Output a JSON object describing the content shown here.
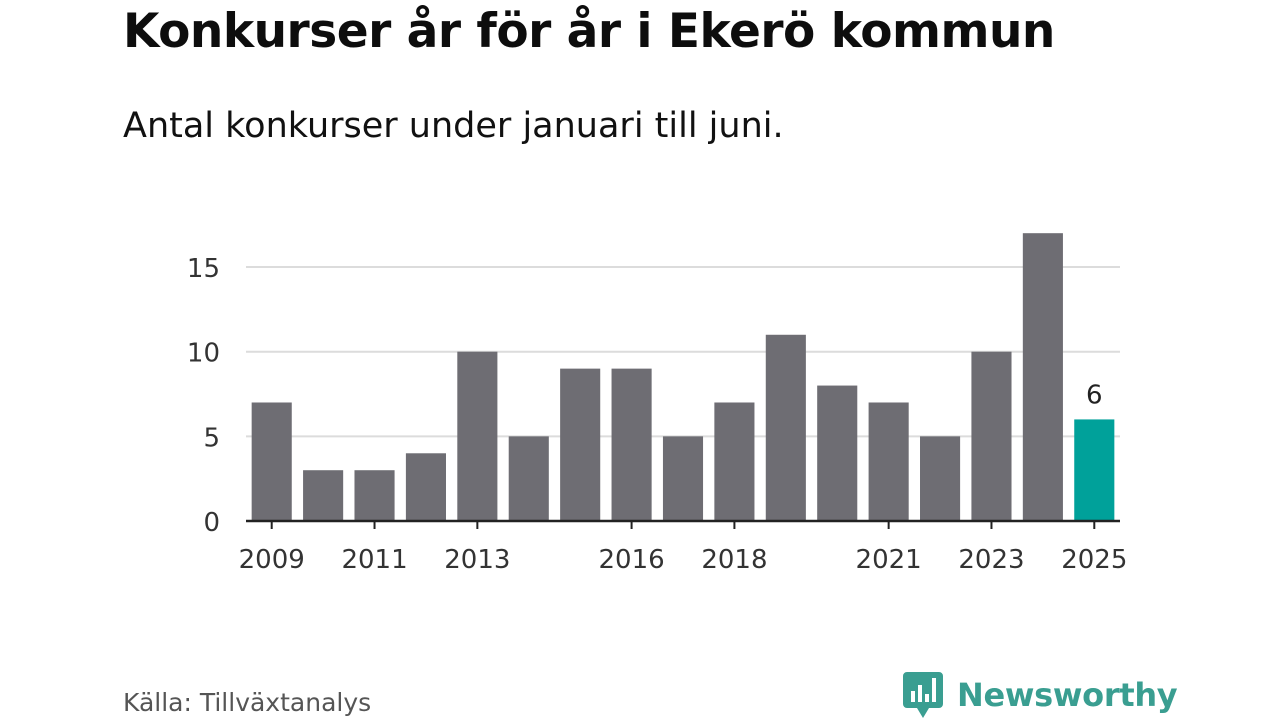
{
  "header": {
    "title": "Konkurser år för år i Ekerö kommun",
    "subtitle": "Antal konkurser under januari till juni."
  },
  "footer": {
    "source": "Källa: Tillväxtanalys",
    "brand": "Newsworthy"
  },
  "colors": {
    "bar": "#6e6d73",
    "highlight": "#00a19a",
    "grid": "#dcdcdc",
    "axis": "#222222",
    "brand": "#3a9e91"
  },
  "chart_data": {
    "type": "bar",
    "categories": [
      "2009",
      "2010",
      "2011",
      "2012",
      "2013",
      "2014",
      "2015",
      "2016",
      "2017",
      "2018",
      "2019",
      "2020",
      "2021",
      "2022",
      "2023",
      "2024",
      "2025"
    ],
    "values": [
      7,
      3,
      3,
      4,
      10,
      5,
      9,
      9,
      5,
      7,
      11,
      8,
      7,
      5,
      10,
      17,
      6
    ],
    "x_tick_labels": [
      "2009",
      "2011",
      "2013",
      "2016",
      "2018",
      "2021",
      "2023",
      "2025"
    ],
    "y_ticks": [
      0,
      5,
      10,
      15
    ],
    "ylim": [
      0,
      17
    ],
    "highlight_category": "2025",
    "data_labels": [
      {
        "category": "2025",
        "text": "6"
      }
    ],
    "grid": true,
    "legend": false
  }
}
